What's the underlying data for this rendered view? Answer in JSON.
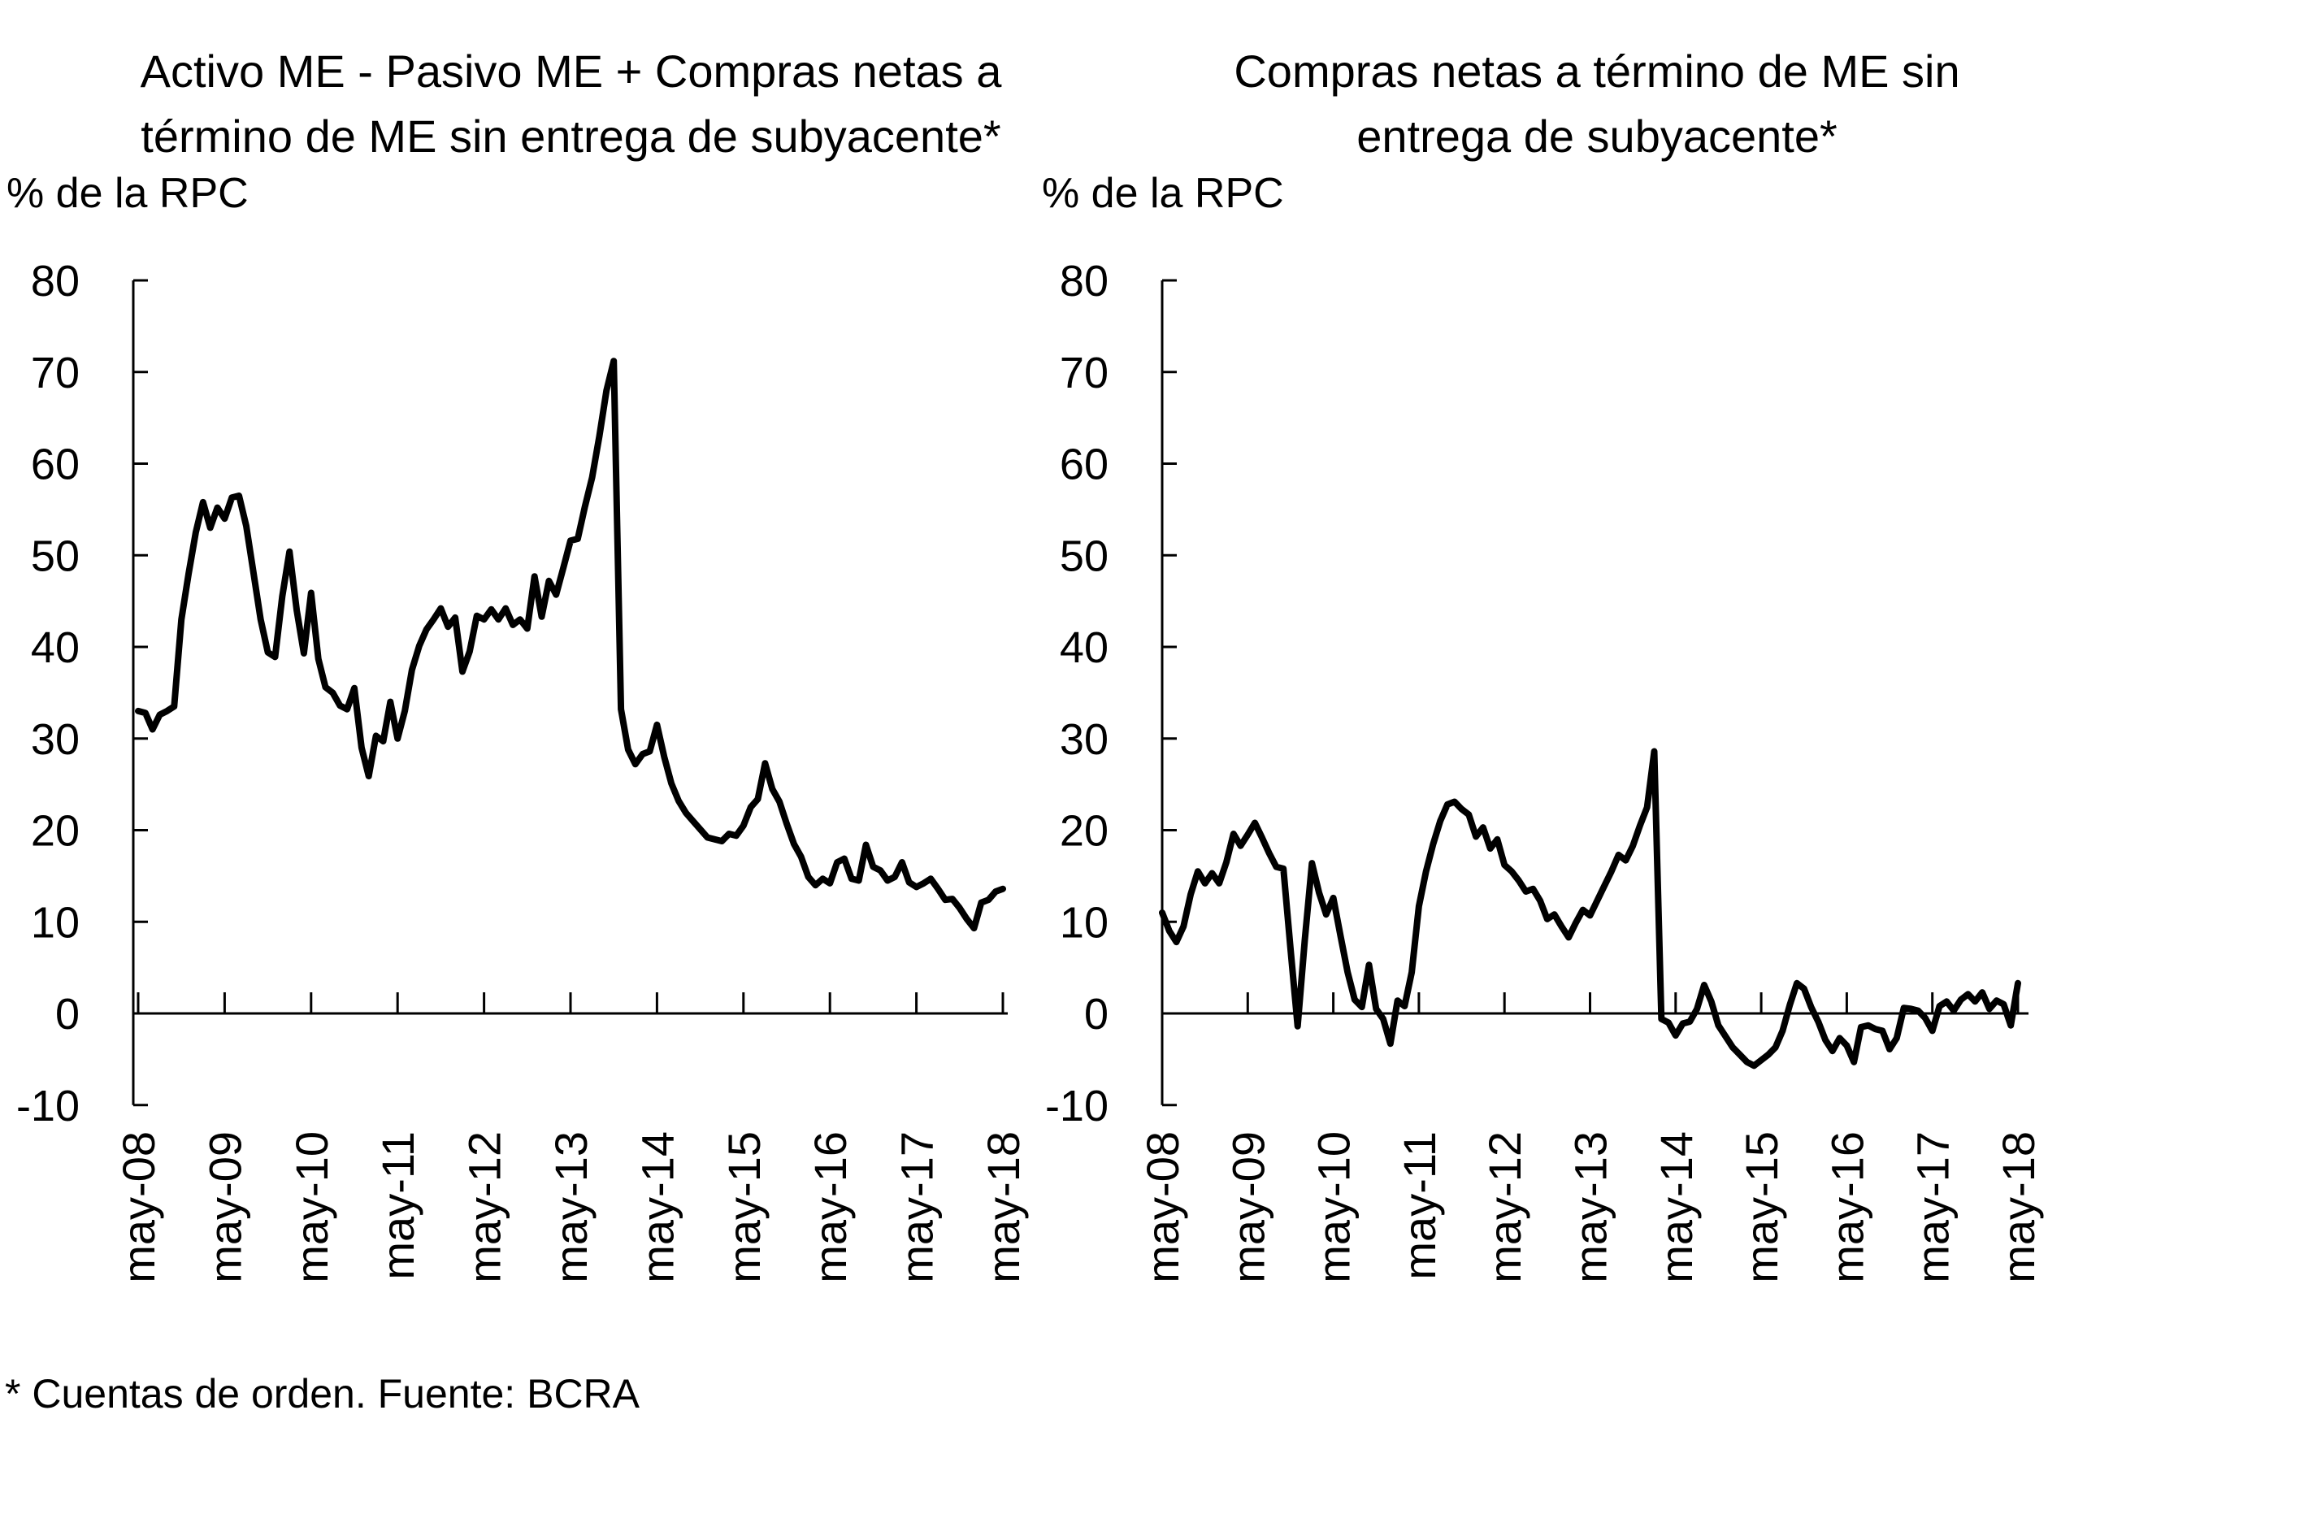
{
  "page": {
    "background": "#ffffff",
    "footnote": "* Cuentas de orden. Fuente: BCRA"
  },
  "chart_data": [
    {
      "type": "line",
      "title": "Activo ME - Pasivo ME + Compras netas a término de ME sin entrega de subyacente*",
      "title_lines": [
        "Activo ME - Pasivo ME + Compras netas a",
        "término de ME sin entrega de subyacente*"
      ],
      "ylabel": "% de la RPC",
      "ylim": [
        -10,
        80
      ],
      "yticks": [
        80,
        70,
        60,
        50,
        40,
        30,
        20,
        10,
        0,
        -10
      ],
      "xticks": [
        "may-08",
        "may-09",
        "may-10",
        "may-11",
        "may-12",
        "may-13",
        "may-14",
        "may-15",
        "may-16",
        "may-17",
        "may-18"
      ],
      "x_frequency": "monthly",
      "x_start": "may-08",
      "x_end": "may-18",
      "grid": false,
      "legend": "none",
      "line_color": "#000000",
      "axis_color": "#000000",
      "series": [
        {
          "name": "Activo ME - Pasivo ME + Compras netas a término de ME sin entrega de subyacente (% de la RPC)",
          "values": [
            33.0,
            32.8,
            31.0,
            32.6,
            33.0,
            33.5,
            43.0,
            48.0,
            52.5,
            55.8,
            53.0,
            55.2,
            54.0,
            56.3,
            56.5,
            53.2,
            48.1,
            43.0,
            39.4,
            38.9,
            45.5,
            50.4,
            44.0,
            39.3,
            45.9,
            38.7,
            35.6,
            35.0,
            33.6,
            33.2,
            35.5,
            29.0,
            25.9,
            30.3,
            29.7,
            34.0,
            30.0,
            33.0,
            37.5,
            40.1,
            41.9,
            43.0,
            44.2,
            42.2,
            43.2,
            37.3,
            39.5,
            43.4,
            43.0,
            44.1,
            43.0,
            44.2,
            42.4,
            43.0,
            42.0,
            47.7,
            43.3,
            47.2,
            45.7,
            48.6,
            51.6,
            51.8,
            55.3,
            58.5,
            63.0,
            68.0,
            71.2,
            33.2,
            28.8,
            27.2,
            28.3,
            28.6,
            31.5,
            28.0,
            25.1,
            23.2,
            21.9,
            21.0,
            20.1,
            19.2,
            19.0,
            18.8,
            19.6,
            19.4,
            20.5,
            22.5,
            23.4,
            27.3,
            24.5,
            23.1,
            20.7,
            18.5,
            17.1,
            14.9,
            14.0,
            14.7,
            14.2,
            16.5,
            16.9,
            14.7,
            14.5,
            18.4,
            16.0,
            15.6,
            14.5,
            14.9,
            16.5,
            14.3,
            13.8,
            14.2,
            14.7,
            13.6,
            12.4,
            12.5,
            11.5,
            10.3,
            9.3,
            12.1,
            12.4,
            13.3,
            13.6
          ]
        }
      ]
    },
    {
      "type": "line",
      "title": "Compras netas a término de ME sin entrega de subyacente*",
      "title_lines": [
        "Compras netas a término de ME sin",
        "entrega de subyacente*"
      ],
      "ylabel": "% de la RPC",
      "ylim": [
        -10,
        80
      ],
      "yticks": [
        80,
        70,
        60,
        50,
        40,
        30,
        20,
        10,
        0,
        -10
      ],
      "xticks": [
        "may-08",
        "may-09",
        "may-10",
        "may-11",
        "may-12",
        "may-13",
        "may-14",
        "may-15",
        "may-16",
        "may-17",
        "may-18"
      ],
      "x_frequency": "monthly",
      "x_start": "may-08",
      "x_end": "may-18",
      "grid": false,
      "legend": "none",
      "line_color": "#000000",
      "axis_color": "#000000",
      "series": [
        {
          "name": "Compras netas a término de ME sin entrega de subyacente (% de la RPC)",
          "values": [
            11.0,
            9.0,
            7.8,
            9.5,
            13.0,
            15.5,
            14.2,
            15.3,
            14.2,
            16.5,
            19.6,
            18.3,
            19.5,
            20.8,
            19.2,
            17.5,
            16.0,
            15.8,
            7.0,
            -1.4,
            8.0,
            16.4,
            13.2,
            10.8,
            12.6,
            8.5,
            4.5,
            1.5,
            0.7,
            5.3,
            0.5,
            -0.6,
            -3.3,
            1.4,
            0.8,
            4.5,
            11.7,
            15.5,
            18.5,
            21.0,
            22.8,
            23.1,
            22.3,
            21.7,
            19.3,
            20.3,
            18.0,
            19.0,
            16.2,
            15.5,
            14.5,
            13.3,
            13.6,
            12.3,
            10.3,
            10.8,
            9.5,
            8.3,
            9.9,
            11.3,
            10.7,
            12.3,
            13.9,
            15.5,
            17.3,
            16.7,
            18.3,
            20.5,
            22.5,
            28.6,
            -0.6,
            -1.0,
            -2.4,
            -1.1,
            -0.9,
            0.5,
            3.1,
            1.3,
            -1.3,
            -2.5,
            -3.7,
            -4.5,
            -5.3,
            -5.7,
            -5.1,
            -4.5,
            -3.7,
            -1.9,
            0.9,
            3.3,
            2.7,
            0.7,
            -0.9,
            -2.9,
            -4.1,
            -2.7,
            -3.5,
            -5.3,
            -1.5,
            -1.3,
            -1.7,
            -1.9,
            -3.9,
            -2.7,
            0.6,
            0.5,
            0.3,
            -0.5,
            -1.9,
            0.8,
            1.3,
            0.3,
            1.5,
            2.1,
            1.3,
            2.3,
            0.5,
            1.4,
            1.0,
            -1.3,
            3.3
          ]
        }
      ]
    }
  ]
}
